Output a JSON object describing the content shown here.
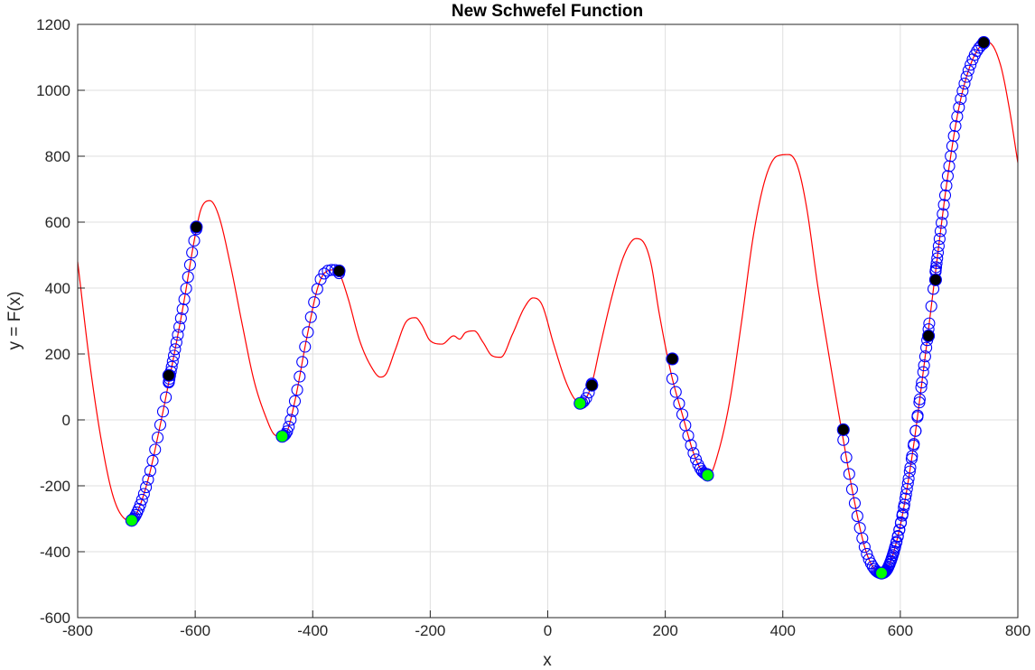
{
  "chart_data": {
    "type": "line",
    "title": "New Schwefel Function",
    "xlabel": "x",
    "ylabel": "y = F(x)",
    "xlim": [
      -800,
      800
    ],
    "ylim": [
      -600,
      1200
    ],
    "xticks": [
      "-800",
      "-600",
      "-400",
      "-200",
      "0",
      "200",
      "400",
      "600",
      "800"
    ],
    "yticks": [
      "1200",
      "1000",
      "800",
      "600",
      "400",
      "200",
      "0",
      "-200",
      "-400",
      "-600"
    ],
    "grid": true,
    "curve_color": "#ff0000",
    "marker_color": "#0000ff",
    "start_color": "#000000",
    "end_color": "#00ff00",
    "series": [
      {
        "type": "line",
        "x": [
          -800,
          -780,
          -760,
          -740,
          -720,
          -710,
          -700,
          -680,
          -660,
          -640,
          -620,
          -600,
          -590,
          -575,
          -560,
          -540,
          -520,
          -500,
          -480,
          -465,
          -455,
          -445,
          -430,
          -410,
          -390,
          -375,
          -365,
          -355,
          -340,
          -320,
          -300,
          -285,
          -275,
          -260,
          -240,
          -225,
          -215,
          -200,
          -180,
          -160,
          -150,
          -140,
          -125,
          -110,
          -95,
          -80,
          -60,
          -40,
          -25,
          -10,
          10,
          30,
          45,
          55,
          65,
          75,
          90,
          110,
          130,
          150,
          160,
          175,
          190,
          210,
          230,
          250,
          265,
          275,
          290,
          310,
          330,
          350,
          370,
          390,
          410,
          425,
          440,
          460,
          480,
          500,
          520,
          540,
          555,
          568,
          580,
          600,
          620,
          640,
          660,
          680,
          700,
          720,
          740,
          750,
          770,
          785,
          800
        ],
        "y": [
          480,
          180,
          -60,
          -230,
          -300,
          -305,
          -285,
          -180,
          -20,
          160,
          350,
          560,
          640,
          665,
          620,
          470,
          290,
          120,
          10,
          -45,
          -50,
          -40,
          60,
          250,
          410,
          452,
          455,
          445,
          370,
          240,
          160,
          130,
          140,
          210,
          300,
          310,
          290,
          240,
          230,
          255,
          245,
          265,
          270,
          235,
          195,
          190,
          260,
          340,
          370,
          350,
          230,
          120,
          65,
          50,
          65,
          110,
          230,
          380,
          500,
          550,
          545,
          480,
          320,
          140,
          10,
          -110,
          -160,
          -165,
          -100,
          60,
          300,
          560,
          730,
          800,
          805,
          770,
          650,
          400,
          180,
          -30,
          -230,
          -390,
          -450,
          -465,
          -445,
          -320,
          -110,
          160,
          450,
          730,
          950,
          1080,
          1140,
          1145,
          1080,
          950,
          780
        ]
      }
    ],
    "marker_segments": [
      {
        "x_start": -645,
        "x_end": -708,
        "y_start": 135,
        "y_end": -305
      },
      {
        "x_start": -598,
        "x_end": -645,
        "y_start": 585,
        "y_end": 135
      },
      {
        "x_start": -355,
        "x_end": -452,
        "y_start": 452,
        "y_end": -50
      },
      {
        "x_start": 75,
        "x_end": 55,
        "y_start": 105,
        "y_end": 50
      },
      {
        "x_start": 212,
        "x_end": 272,
        "y_start": 185,
        "y_end": -168
      },
      {
        "x_start": 503,
        "x_end": 568,
        "y_start": -30,
        "y_end": -465
      },
      {
        "x_start": 648,
        "x_end": 568,
        "y_start": 255,
        "y_end": -465
      },
      {
        "x_start": 660,
        "x_end": 568,
        "y_start": 425,
        "y_end": -465
      },
      {
        "x_start": 742,
        "x_end": 660,
        "y_start": 1145,
        "y_end": 425
      }
    ],
    "start_points": [
      {
        "x": -645,
        "y": 135
      },
      {
        "x": -598,
        "y": 585
      },
      {
        "x": -355,
        "y": 452
      },
      {
        "x": 75,
        "y": 105
      },
      {
        "x": 212,
        "y": 185
      },
      {
        "x": 503,
        "y": -30
      },
      {
        "x": 648,
        "y": 255
      },
      {
        "x": 660,
        "y": 425
      },
      {
        "x": 742,
        "y": 1145
      }
    ],
    "end_points": [
      {
        "x": -708,
        "y": -305
      },
      {
        "x": -452,
        "y": -50
      },
      {
        "x": 55,
        "y": 50
      },
      {
        "x": 272,
        "y": -168
      },
      {
        "x": 568,
        "y": -465
      }
    ]
  }
}
